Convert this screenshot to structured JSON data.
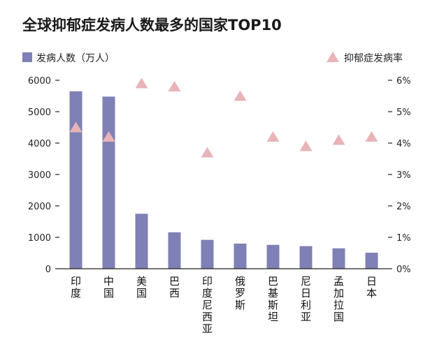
{
  "chart_data": {
    "type": "bar",
    "title": "全球抑郁症发病人数最多的国家TOP10",
    "categories": [
      "印度",
      "中国",
      "美国",
      "巴西",
      "印度尼西亚",
      "俄罗斯",
      "巴基斯坦",
      "尼日利亚",
      "孟加拉国",
      "日本"
    ],
    "series": [
      {
        "name": "发病人数（万人）",
        "type": "bar",
        "axis": "left",
        "color": "#7f80b5",
        "values": [
          5650,
          5480,
          1750,
          1160,
          920,
          800,
          760,
          720,
          650,
          510
        ]
      },
      {
        "name": "抑郁症发病率",
        "type": "scatter",
        "marker": "triangle",
        "axis": "right",
        "color": "#e8b4b8",
        "values": [
          4.5,
          4.2,
          5.9,
          5.8,
          3.7,
          5.5,
          4.2,
          3.9,
          4.1,
          4.2
        ]
      }
    ],
    "ylim_left": [
      0,
      6000
    ],
    "yticks_left": [
      "0",
      "1000",
      "2000",
      "3000",
      "4000",
      "5000",
      "6000"
    ],
    "ylim_right": [
      0,
      6
    ],
    "yticks_right": [
      "0%",
      "1%",
      "2%",
      "3%",
      "4%",
      "5%",
      "6%"
    ],
    "legend": {
      "placement": "top",
      "bar_label": "发病人数（万人）",
      "marker_label": "抑郁症发病率"
    },
    "grid": false
  }
}
